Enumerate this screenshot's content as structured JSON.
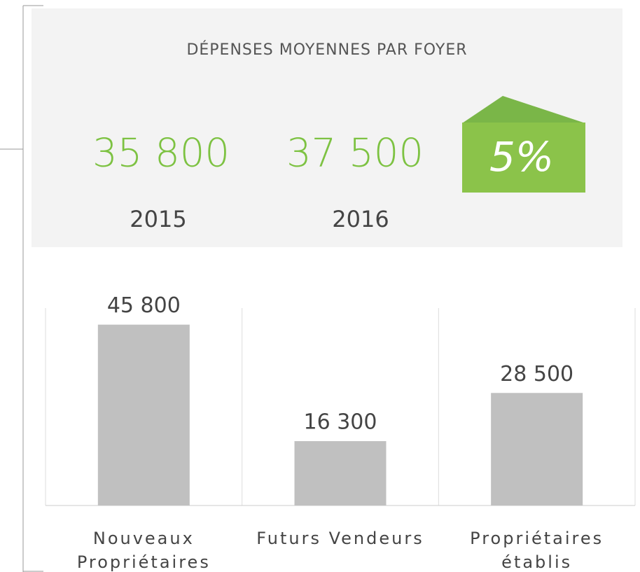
{
  "header": {
    "title": "DÉPENSES MOYENNES PAR FOYER",
    "stats": [
      {
        "value": "35 800",
        "year": "2015"
      },
      {
        "value": "37 500",
        "year": "2016"
      }
    ],
    "change": "5%"
  },
  "chart_data": {
    "type": "bar",
    "categories": [
      "Nouveaux\nPropriétaires",
      "Futurs Vendeurs",
      "Propriétaires\nétablis"
    ],
    "values": [
      45800,
      16300,
      28500
    ],
    "value_labels": [
      "45 800",
      "16 300",
      "28 500"
    ],
    "color": "#c0c0c0",
    "ylim": [
      0,
      50000
    ]
  }
}
